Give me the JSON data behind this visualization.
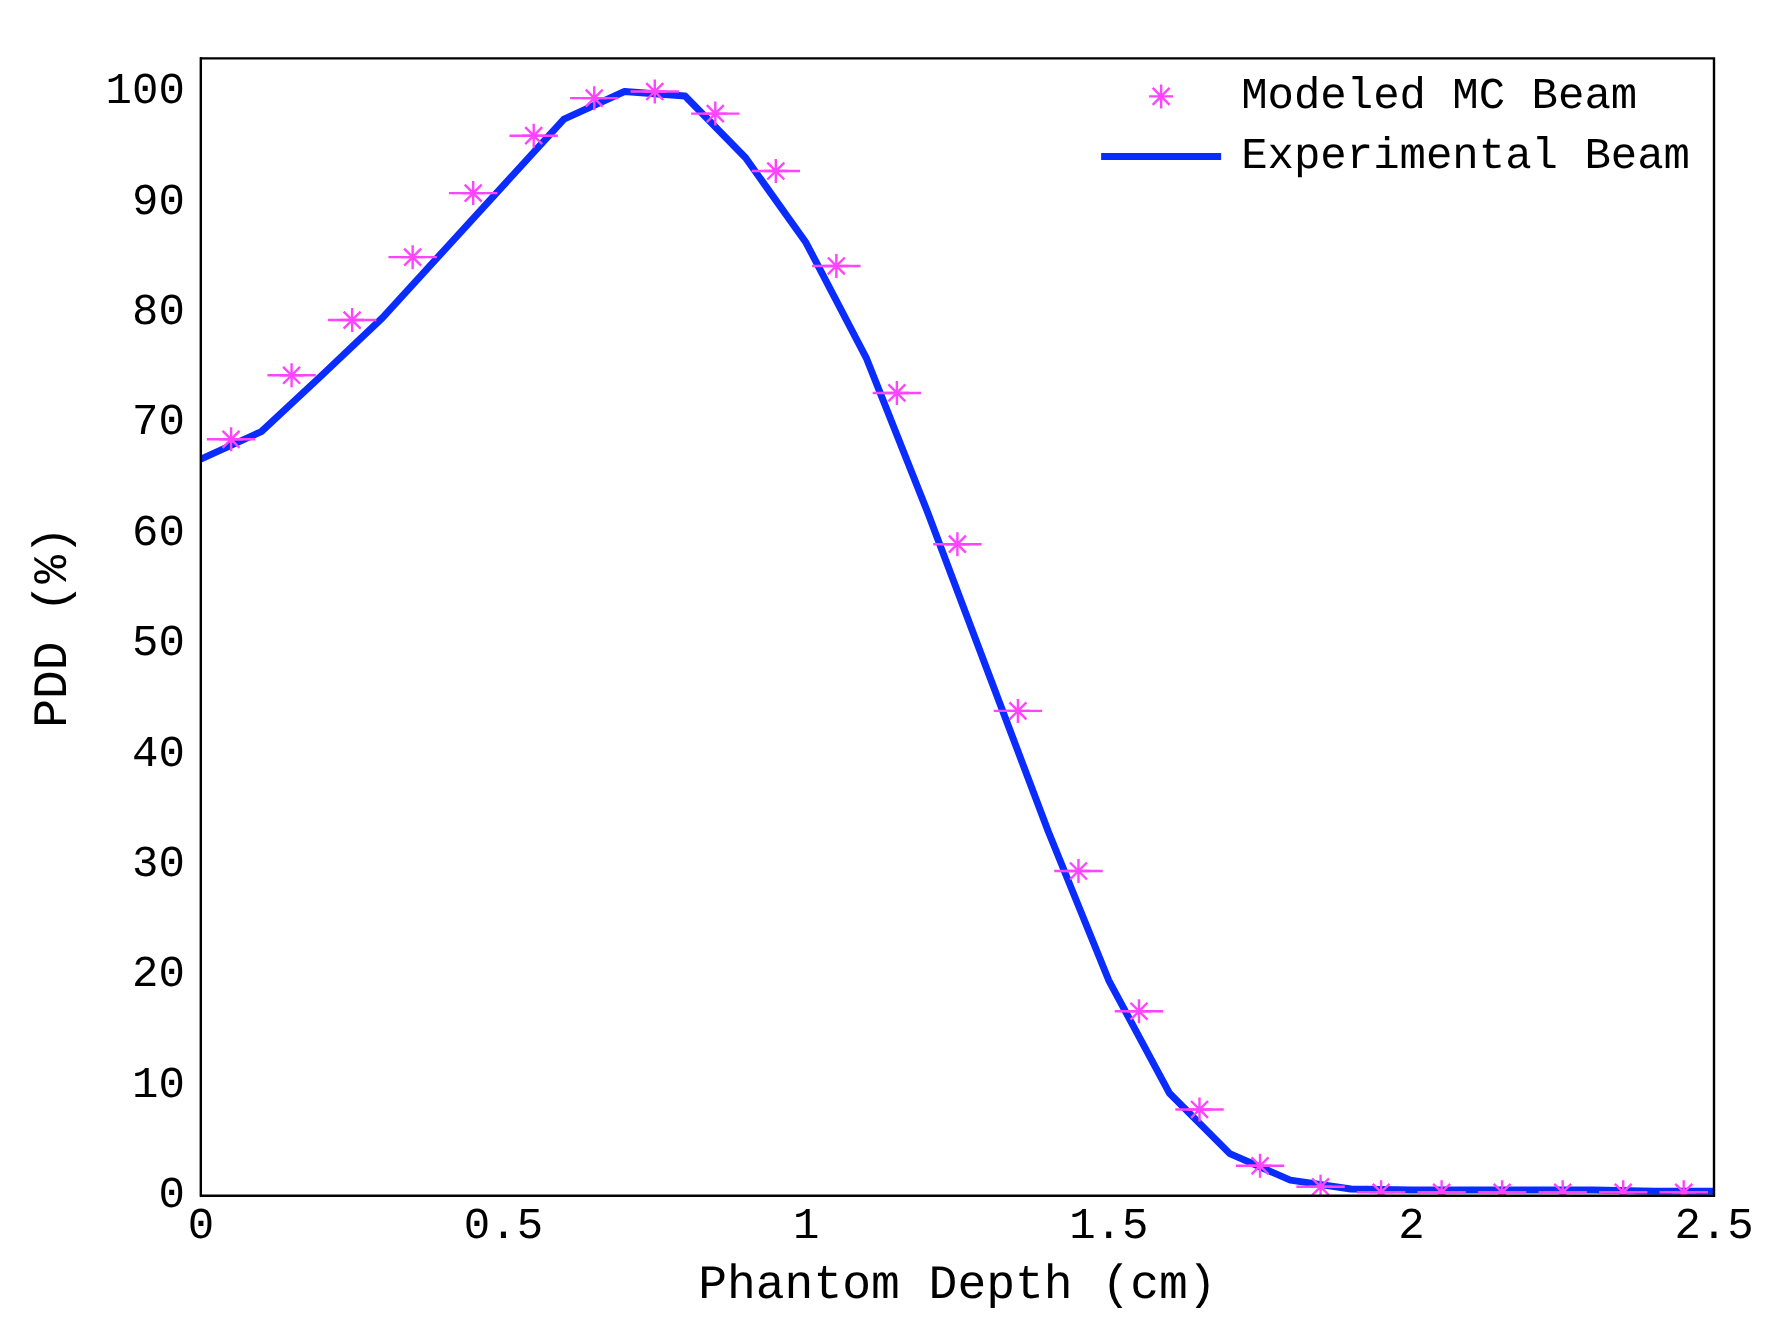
{
  "chart_data": {
    "type": "line",
    "xlabel": "Phantom Depth (cm)",
    "ylabel": "PDD (%)",
    "xlim": [
      0,
      2.5
    ],
    "ylim": [
      0,
      103
    ],
    "xticks": [
      0,
      0.5,
      1,
      1.5,
      2,
      2.5
    ],
    "yticks": [
      0,
      10,
      20,
      30,
      40,
      50,
      60,
      70,
      80,
      90,
      100
    ],
    "grid": false,
    "legend": "top right",
    "series": [
      {
        "name": "Modeled MC Beam",
        "type": "scatter",
        "marker": "cross",
        "color": "#ff44ff",
        "x": [
          0.05,
          0.15,
          0.25,
          0.35,
          0.45,
          0.55,
          0.65,
          0.75,
          0.85,
          0.95,
          1.05,
          1.15,
          1.25,
          1.35,
          1.45,
          1.55,
          1.65,
          1.75,
          1.85,
          1.95,
          2.05,
          2.15,
          2.25,
          2.35,
          2.45
        ],
        "values": [
          68.5,
          74.3,
          79.3,
          85,
          90.8,
          96,
          99.4,
          100,
          98,
          92.8,
          84.2,
          72.7,
          59,
          43.9,
          29.4,
          16.7,
          7.8,
          2.7,
          0.8,
          0.3,
          0.3,
          0.3,
          0.3,
          0.3,
          0.3
        ],
        "xerrors": [
          0.04,
          0.04,
          0.04,
          0.04,
          0.04,
          0.04,
          0.04,
          0.04,
          0.04,
          0.04,
          0.04,
          0.04,
          0.04,
          0.04,
          0.04,
          0.04,
          0.04,
          0.04,
          0.04,
          0.04,
          0.04,
          0.04,
          0.04,
          0.04,
          0.04
        ]
      },
      {
        "name": "Experimental Beam",
        "marker": "none",
        "line_style": "solid",
        "color": "#0a2cff",
        "x": [
          0,
          0.1,
          0.2,
          0.3,
          0.4,
          0.5,
          0.6,
          0.7,
          0.8,
          0.9,
          1,
          1.1,
          1.2,
          1.3,
          1.4,
          1.5,
          1.6,
          1.7,
          1.8,
          1.9,
          2,
          2.1,
          2.2,
          2.3,
          2.4,
          2.5
        ],
        "values": [
          66.7,
          69.2,
          74.3,
          79.5,
          85.5,
          91.5,
          97.5,
          100,
          99.6,
          94,
          86.3,
          75.8,
          62,
          47.5,
          33,
          19.5,
          9.3,
          3.8,
          1.4,
          0.6,
          0.5,
          0.5,
          0.5,
          0.5,
          0.4,
          0.4
        ]
      }
    ]
  }
}
